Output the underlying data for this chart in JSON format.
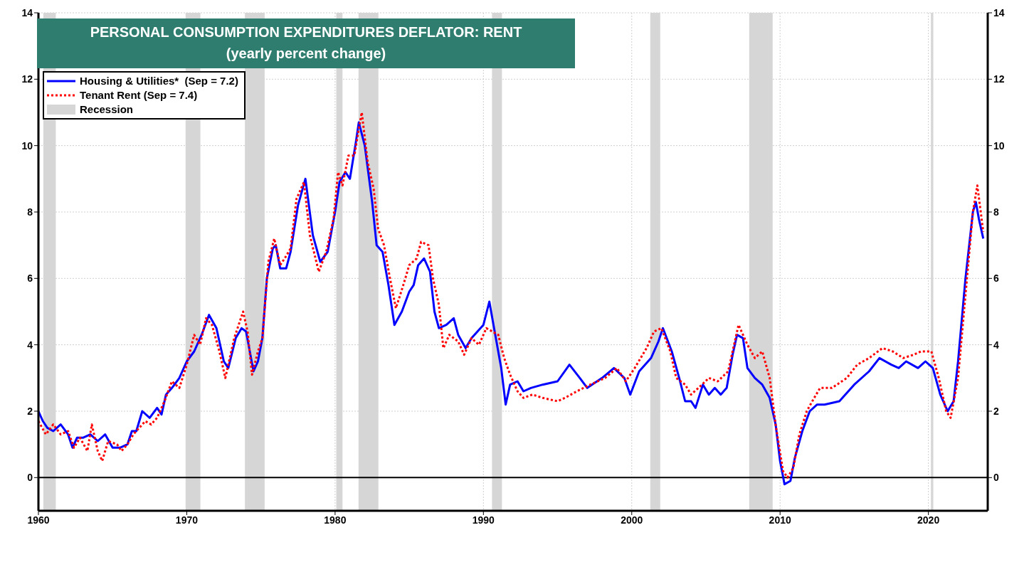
{
  "chart_data": {
    "type": "line",
    "title": "PERSONAL CONSUMPTION EXPENDITURES DEFLATOR: RENT",
    "subtitle": "(yearly percent change)",
    "xlim": [
      1960,
      2024
    ],
    "xticks": [
      1960,
      1970,
      1980,
      1990,
      2000,
      2010,
      2020
    ],
    "ylim": [
      -1,
      14
    ],
    "yticks": [
      0,
      2,
      4,
      6,
      8,
      10,
      12,
      14
    ],
    "y2lim": [
      -1,
      14
    ],
    "y2ticks": [
      0,
      2,
      4,
      6,
      8,
      10,
      12,
      14
    ],
    "grid": true,
    "legend": "top left",
    "marker": "none",
    "ref_lines": [
      {
        "axis": "y",
        "value": 0,
        "color": "#000000",
        "line_style": "solid"
      }
    ],
    "bands": [
      {
        "axis": "x",
        "from": 1960.33,
        "to": 1961.17,
        "label": "Recession",
        "color": "#d6d6d6"
      },
      {
        "axis": "x",
        "from": 1969.92,
        "to": 1970.92,
        "color": "#d6d6d6"
      },
      {
        "axis": "x",
        "from": 1973.92,
        "to": 1975.25,
        "color": "#d6d6d6"
      },
      {
        "axis": "x",
        "from": 1980.08,
        "to": 1980.5,
        "color": "#d6d6d6"
      },
      {
        "axis": "x",
        "from": 1981.58,
        "to": 1982.92,
        "color": "#d6d6d6"
      },
      {
        "axis": "x",
        "from": 1990.58,
        "to": 1991.25,
        "color": "#d6d6d6"
      },
      {
        "axis": "x",
        "from": 2001.25,
        "to": 2001.92,
        "color": "#d6d6d6"
      },
      {
        "axis": "x",
        "from": 2007.92,
        "to": 2009.5,
        "color": "#d6d6d6"
      },
      {
        "axis": "x",
        "from": 2020.17,
        "to": 2020.33,
        "color": "#d6d6d6"
      }
    ],
    "series": [
      {
        "name": "Housing & Utilities*  (Sep = 7.2)",
        "color": "#0000ff",
        "line_style": "solid",
        "x": [
          1960,
          1960.3,
          1960.6,
          1961,
          1961.5,
          1962,
          1962.3,
          1962.6,
          1963,
          1963.5,
          1964,
          1964.5,
          1965,
          1965.5,
          1966,
          1966.3,
          1966.6,
          1967,
          1967.5,
          1968,
          1968.3,
          1968.6,
          1969,
          1969.5,
          1970,
          1970.5,
          1971,
          1971.5,
          1972,
          1972.5,
          1972.8,
          1973.3,
          1973.7,
          1974,
          1974.5,
          1974.8,
          1975.1,
          1975.4,
          1975.8,
          1976,
          1976.3,
          1976.7,
          1977,
          1977.5,
          1978,
          1978.5,
          1979,
          1979.5,
          1980,
          1980.3,
          1980.7,
          1981,
          1981.4,
          1981.6,
          1982,
          1982.5,
          1982.8,
          1983.2,
          1983.6,
          1984,
          1984.5,
          1985,
          1985.3,
          1985.6,
          1986,
          1986.4,
          1986.7,
          1987,
          1987.5,
          1988,
          1988.3,
          1988.8,
          1989.2,
          1989.6,
          1990,
          1990.4,
          1990.8,
          1991.2,
          1991.5,
          1991.8,
          1992.3,
          1992.7,
          1993.2,
          1994,
          1995,
          1995.8,
          1996.5,
          1997,
          1998,
          1998.8,
          1999.5,
          1999.9,
          2000.5,
          2001.3,
          2001.8,
          2002.1,
          2002.7,
          2003.2,
          2003.6,
          2004,
          2004.3,
          2004.8,
          2005.2,
          2005.6,
          2006,
          2006.4,
          2006.8,
          2007.1,
          2007.5,
          2007.8,
          2008.3,
          2008.8,
          2009.3,
          2009.7,
          2010,
          2010.3,
          2010.7,
          2011,
          2011.5,
          2012,
          2012.5,
          2013,
          2014,
          2015,
          2016,
          2016.7,
          2017.5,
          2018,
          2018.5,
          2019.3,
          2019.8,
          2020.3,
          2020.8,
          2021.3,
          2021.7,
          2022,
          2022.5,
          2023,
          2023.2,
          2023.4,
          2023.7
        ],
        "values": [
          2.0,
          1.7,
          1.5,
          1.4,
          1.6,
          1.3,
          0.9,
          1.2,
          1.2,
          1.3,
          1.1,
          1.3,
          0.9,
          0.9,
          1.0,
          1.4,
          1.4,
          2.0,
          1.8,
          2.1,
          1.9,
          2.5,
          2.7,
          3.0,
          3.5,
          3.8,
          4.3,
          4.9,
          4.5,
          3.5,
          3.3,
          4.2,
          4.5,
          4.4,
          3.2,
          3.5,
          4.2,
          6.0,
          6.9,
          7.0,
          6.3,
          6.3,
          6.8,
          8.2,
          9.0,
          7.3,
          6.5,
          6.8,
          8.0,
          8.9,
          9.2,
          9.0,
          10.1,
          10.7,
          10.0,
          8.3,
          7.0,
          6.8,
          5.8,
          4.6,
          5.0,
          5.6,
          5.8,
          6.4,
          6.6,
          6.2,
          5.0,
          4.5,
          4.6,
          4.8,
          4.3,
          3.9,
          4.2,
          4.4,
          4.6,
          5.3,
          4.3,
          3.3,
          2.2,
          2.8,
          2.9,
          2.6,
          2.7,
          2.8,
          2.9,
          3.4,
          3.0,
          2.7,
          3.0,
          3.3,
          3.0,
          2.5,
          3.2,
          3.6,
          4.1,
          4.5,
          3.8,
          3.0,
          2.3,
          2.3,
          2.1,
          2.8,
          2.5,
          2.7,
          2.5,
          2.7,
          3.7,
          4.3,
          4.2,
          3.3,
          3.0,
          2.8,
          2.4,
          1.6,
          0.5,
          -0.2,
          -0.1,
          0.6,
          1.4,
          2.0,
          2.2,
          2.2,
          2.3,
          2.8,
          3.2,
          3.6,
          3.4,
          3.3,
          3.5,
          3.3,
          3.5,
          3.3,
          2.5,
          2.0,
          2.3,
          3.5,
          6.0,
          8.0,
          8.3,
          7.8,
          7.2
        ]
      },
      {
        "name": "Tenant Rent (Sep = 7.4)",
        "color": "#ff0000",
        "line_style": "dotted",
        "x": [
          1960,
          1960.5,
          1961,
          1961.5,
          1962,
          1962.4,
          1962.8,
          1963.3,
          1963.6,
          1964,
          1964.3,
          1964.7,
          1965.3,
          1965.6,
          1966,
          1966.4,
          1966.8,
          1967.2,
          1967.6,
          1968,
          1968.5,
          1969,
          1969.5,
          1970,
          1970.5,
          1970.9,
          1971.3,
          1971.7,
          1972.2,
          1972.6,
          1973.2,
          1973.8,
          1974.1,
          1974.4,
          1974.8,
          1975.1,
          1975.5,
          1975.9,
          1976.3,
          1976.6,
          1977,
          1977.4,
          1977.9,
          1978.3,
          1978.9,
          1979.4,
          1979.9,
          1980.2,
          1980.5,
          1980.9,
          1981.3,
          1981.6,
          1981.8,
          1982.2,
          1982.6,
          1982.9,
          1983.3,
          1983.7,
          1984.1,
          1984.6,
          1985,
          1985.5,
          1985.8,
          1986.3,
          1986.6,
          1987,
          1987.3,
          1987.7,
          1988.3,
          1988.7,
          1989.2,
          1989.7,
          1990.2,
          1990.6,
          1991,
          1991.4,
          1991.8,
          1992.3,
          1992.7,
          1993.3,
          1994,
          1995,
          1995.5,
          1996.3,
          1997.2,
          1998.2,
          1999,
          1999.6,
          2000.2,
          2001,
          2001.5,
          2002,
          2002.6,
          2003,
          2003.6,
          2004,
          2004.5,
          2005.2,
          2005.8,
          2006.5,
          2007,
          2007.2,
          2007.8,
          2008.3,
          2008.8,
          2009.3,
          2009.7,
          2010.2,
          2010.5,
          2010.9,
          2011.3,
          2011.8,
          2012.3,
          2012.7,
          2013.5,
          2014.5,
          2015.2,
          2016,
          2016.9,
          2017.6,
          2018.3,
          2019,
          2019.5,
          2020.2,
          2020.7,
          2021.2,
          2021.5,
          2022,
          2022.5,
          2023,
          2023.3,
          2023.7
        ],
        "values": [
          1.7,
          1.3,
          1.6,
          1.3,
          1.4,
          0.9,
          1.2,
          0.8,
          1.6,
          0.8,
          0.5,
          1.1,
          1.0,
          0.8,
          1.0,
          1.3,
          1.5,
          1.7,
          1.6,
          1.8,
          2.3,
          2.9,
          2.7,
          3.4,
          4.3,
          4.0,
          4.8,
          4.6,
          3.8,
          3.0,
          4.2,
          5.0,
          4.4,
          3.1,
          3.8,
          4.2,
          6.5,
          7.2,
          6.4,
          6.6,
          6.9,
          8.4,
          8.9,
          7.3,
          6.2,
          6.8,
          7.8,
          9.2,
          8.8,
          9.7,
          9.7,
          10.5,
          11.0,
          9.5,
          8.7,
          7.5,
          7.0,
          6.0,
          5.1,
          5.8,
          6.4,
          6.6,
          7.1,
          7.0,
          6.0,
          5.2,
          3.9,
          4.3,
          4.1,
          3.7,
          4.2,
          4.0,
          4.5,
          4.4,
          4.3,
          3.6,
          3.1,
          2.6,
          2.4,
          2.5,
          2.4,
          2.3,
          2.4,
          2.6,
          2.8,
          3.0,
          3.3,
          2.9,
          3.3,
          3.9,
          4.4,
          4.5,
          3.8,
          3.0,
          2.8,
          2.5,
          2.7,
          3.0,
          2.9,
          3.2,
          4.2,
          4.6,
          4.0,
          3.6,
          3.8,
          3.0,
          1.6,
          0.2,
          0.0,
          0.3,
          1.3,
          2.0,
          2.4,
          2.7,
          2.7,
          3.0,
          3.4,
          3.6,
          3.9,
          3.8,
          3.6,
          3.7,
          3.8,
          3.8,
          3.0,
          2.0,
          1.8,
          3.0,
          5.5,
          8.0,
          8.8,
          7.4
        ]
      }
    ]
  }
}
